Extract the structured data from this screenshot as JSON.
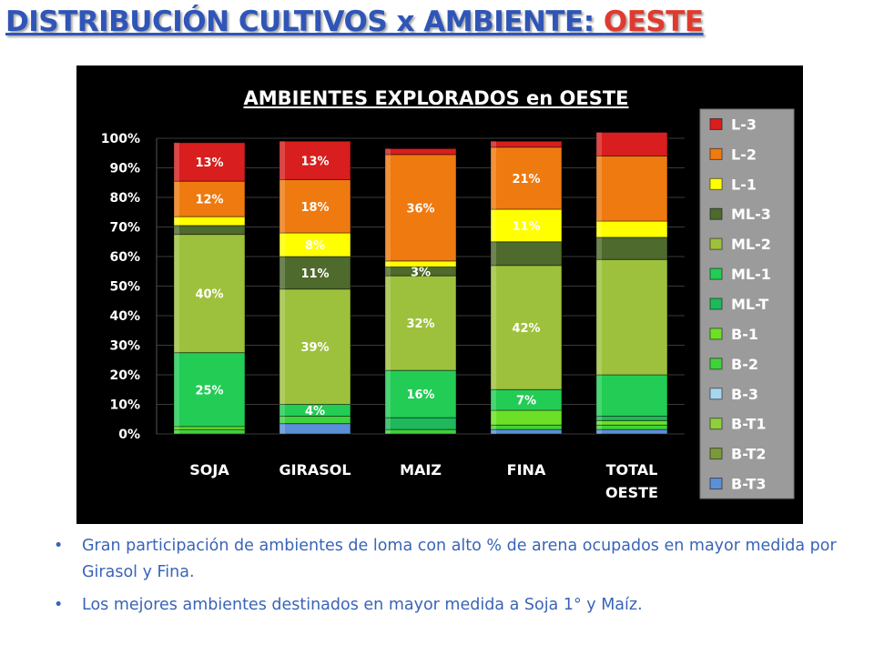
{
  "slide": {
    "title": "DISTRIBUCIÓN CULTIVOS x AMBIENTE: ",
    "title_highlight": "OESTE",
    "bullet_char": "•",
    "bullets": [
      "Gran participación de ambientes de loma con alto % de arena ocupados en mayor medida por Girasol y Fina.",
      "Los mejores ambientes destinados en mayor medida a Soja 1° y Maíz."
    ]
  },
  "chart_data": {
    "type": "bar",
    "stacked": true,
    "title": "AMBIENTES EXPLORADOS en OESTE",
    "categories": [
      "SOJA",
      "GIRASOL",
      "MAIZ",
      "FINA",
      "TOTAL\nOESTE"
    ],
    "yticks": [
      "0%",
      "10%",
      "20%",
      "30%",
      "40%",
      "50%",
      "60%",
      "70%",
      "80%",
      "90%",
      "100%"
    ],
    "ylim": [
      0,
      100
    ],
    "legend_position": "right",
    "series": [
      {
        "name": "B-T3",
        "color": "#5b8fd6",
        "values": [
          0,
          3.5,
          0,
          1.5,
          1.5
        ],
        "labels": [
          "",
          "",
          "",
          "",
          ""
        ]
      },
      {
        "name": "B-T2",
        "color": "#7a9a3a",
        "values": [
          0,
          0,
          0,
          0,
          0
        ],
        "labels": [
          "",
          "",
          "",
          "",
          ""
        ]
      },
      {
        "name": "B-T1",
        "color": "#8fcf3c",
        "values": [
          0,
          0,
          0,
          0,
          0
        ],
        "labels": [
          "",
          "",
          "",
          "",
          ""
        ]
      },
      {
        "name": "B-3",
        "color": "#a8d6f0",
        "values": [
          0,
          0,
          0,
          0,
          0
        ],
        "labels": [
          "",
          "",
          "",
          "",
          ""
        ]
      },
      {
        "name": "B-2",
        "color": "#3fd23a",
        "values": [
          1.5,
          2.5,
          1.5,
          1.5,
          1.5
        ],
        "labels": [
          "",
          "",
          "",
          "",
          ""
        ]
      },
      {
        "name": "B-1",
        "color": "#6ce026",
        "values": [
          1,
          0,
          0,
          5,
          1.5
        ],
        "labels": [
          "",
          "",
          "",
          "",
          ""
        ]
      },
      {
        "name": "ML-T",
        "color": "#1fb85a",
        "values": [
          0,
          0,
          4,
          0,
          1.5
        ],
        "labels": [
          "",
          "",
          "",
          "",
          ""
        ]
      },
      {
        "name": "ML-1",
        "color": "#22cc55",
        "values": [
          25,
          4,
          16,
          7,
          14
        ],
        "labels": [
          "25%",
          "4%",
          "16%",
          "7%",
          ""
        ]
      },
      {
        "name": "ML-2",
        "color": "#9ec13d",
        "values": [
          40,
          39,
          32,
          42,
          39
        ],
        "labels": [
          "40%",
          "39%",
          "32%",
          "42%",
          ""
        ]
      },
      {
        "name": "ML-3",
        "color": "#4e6a2c",
        "values": [
          3,
          11,
          3,
          8,
          7.5
        ],
        "labels": [
          "",
          "11%",
          "3%",
          "",
          ""
        ]
      },
      {
        "name": "L-1",
        "color": "#ffff00",
        "values": [
          3,
          8,
          2,
          11,
          5.5
        ],
        "labels": [
          "",
          "8%",
          "",
          "11%",
          ""
        ]
      },
      {
        "name": "L-2",
        "color": "#ee7a10",
        "values": [
          12,
          18,
          36,
          21,
          22
        ],
        "labels": [
          "12%",
          "18%",
          "36%",
          "21%",
          ""
        ]
      },
      {
        "name": "L-3",
        "color": "#d81e1e",
        "values": [
          13,
          13,
          2,
          2,
          8
        ],
        "labels": [
          "13%",
          "13%",
          "",
          "",
          ""
        ]
      }
    ],
    "legend_order": [
      "L-3",
      "L-2",
      "L-1",
      "ML-3",
      "ML-2",
      "ML-1",
      "ML-T",
      "B-1",
      "B-2",
      "B-3",
      "B-T1",
      "B-T2",
      "B-T3"
    ]
  }
}
